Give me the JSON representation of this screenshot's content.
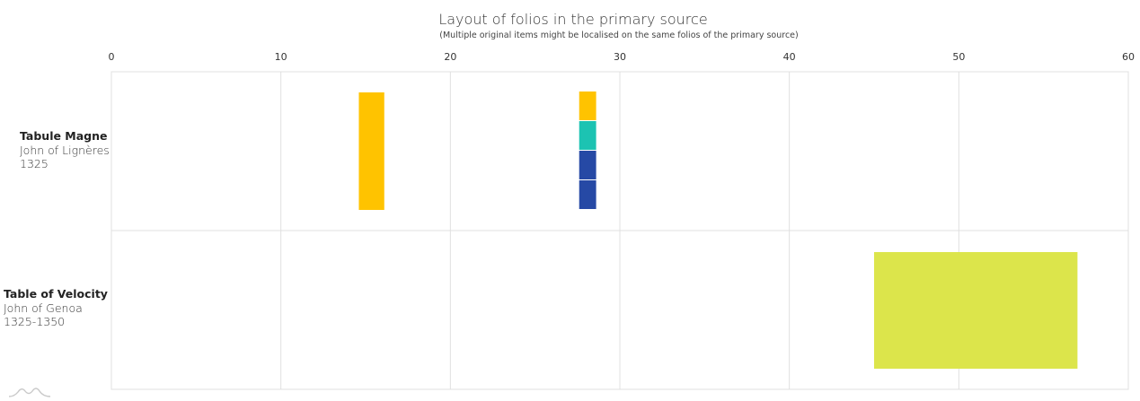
{
  "chart_data": {
    "type": "bar",
    "orientation": "horizontal-range",
    "title": "Layout of folios in the primary source",
    "subtitle": "(Multiple original items might be localised on the same folios of the primary source)",
    "x_axis": {
      "min": 0,
      "max": 60,
      "ticks": [
        0,
        10,
        20,
        30,
        40,
        50,
        60
      ],
      "position": "top",
      "grid": true
    },
    "categories": [
      {
        "name": "Tabule Magne",
        "author": "John of Lignères",
        "date": "1325"
      },
      {
        "name": "Table of  Velocity",
        "author": "John of Genoa",
        "date": "1325-1350"
      }
    ],
    "segments": [
      {
        "row": 0,
        "start": 14.6,
        "end": 16.1,
        "lane": 0,
        "lanes": 1,
        "color": "#FFC300"
      },
      {
        "row": 0,
        "start": 27.6,
        "end": 28.6,
        "lane": 0,
        "lanes": 4,
        "color": "#FFC300"
      },
      {
        "row": 0,
        "start": 27.6,
        "end": 28.6,
        "lane": 1,
        "lanes": 4,
        "color": "#1CC3B2"
      },
      {
        "row": 0,
        "start": 27.6,
        "end": 28.6,
        "lane": 2,
        "lanes": 4,
        "color": "#2649A5"
      },
      {
        "row": 0,
        "start": 27.6,
        "end": 28.6,
        "lane": 3,
        "lanes": 4,
        "color": "#2649A5"
      },
      {
        "row": 1,
        "start": 45.0,
        "end": 57.0,
        "lane": 0,
        "lanes": 1,
        "color": "#DCE54B"
      }
    ],
    "grid_color": "#e0e0e0"
  }
}
